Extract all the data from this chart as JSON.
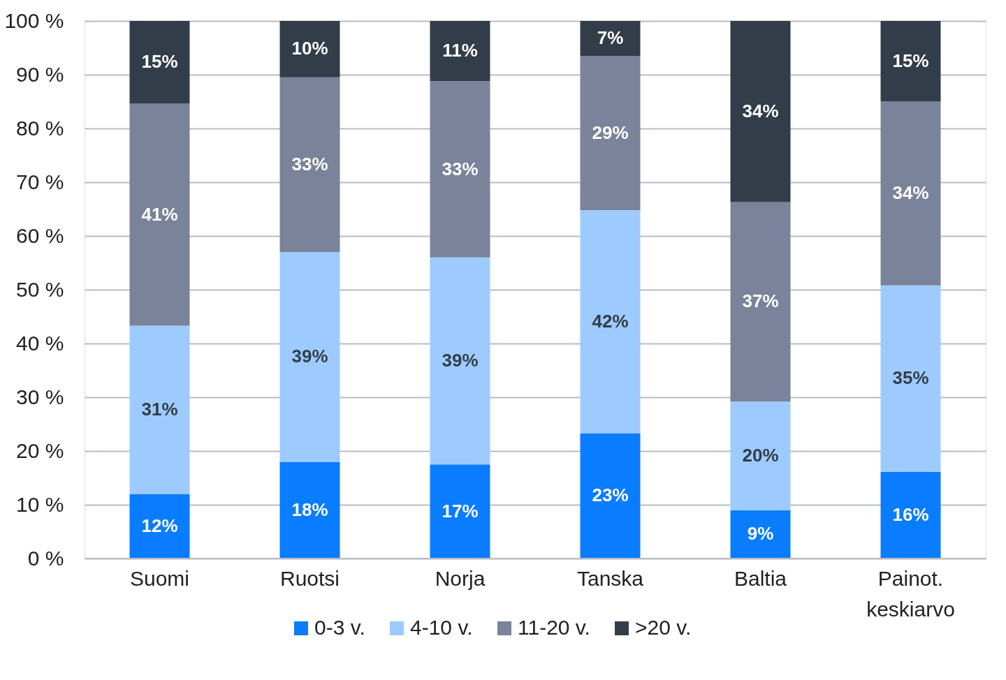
{
  "chart_data": {
    "type": "bar",
    "stacked": true,
    "categories": [
      "Suomi",
      "Ruotsi",
      "Norja",
      "Tanska",
      "Baltia",
      "Painot. keskiarvo"
    ],
    "series": [
      {
        "name": "0-3 v.",
        "color": "#0a7cff",
        "values": [
          12.0,
          18.0,
          17.5,
          23.3,
          9.0,
          16.1
        ],
        "value_labels": [
          "12%",
          "18%",
          "17%",
          "23%",
          "9%",
          "16%"
        ]
      },
      {
        "name": "4-10 v.",
        "color": "#9ecbff",
        "values": [
          31.3,
          39.0,
          38.5,
          41.5,
          20.2,
          34.7
        ],
        "value_labels": [
          "31%",
          "39%",
          "39%",
          "42%",
          "20%",
          "35%"
        ]
      },
      {
        "name": "11-20 v.",
        "color": "#7a8399",
        "values": [
          41.3,
          32.5,
          32.8,
          28.7,
          37.1,
          34.2
        ],
        "value_labels": [
          "41%",
          "33%",
          "33%",
          "29%",
          "37%",
          "34%"
        ]
      },
      {
        "name": ">20 v.",
        "color": "#333d4a",
        "values": [
          15.4,
          10.5,
          11.2,
          6.5,
          33.7,
          15.0
        ],
        "value_labels": [
          "15%",
          "10%",
          "11%",
          "7%",
          "34%",
          "15%"
        ]
      }
    ],
    "ylim": [
      0,
      100
    ],
    "yticks": [
      {
        "value": 0,
        "label": "0 %"
      },
      {
        "value": 10,
        "label": "10 %"
      },
      {
        "value": 20,
        "label": "20 %"
      },
      {
        "value": 30,
        "label": "30 %"
      },
      {
        "value": 40,
        "label": "40 %"
      },
      {
        "value": 50,
        "label": "50 %"
      },
      {
        "value": 60,
        "label": "60 %"
      },
      {
        "value": 70,
        "label": "70 %"
      },
      {
        "value": 80,
        "label": "80 %"
      },
      {
        "value": 90,
        "label": "90 %"
      },
      {
        "value": 100,
        "label": "100 %"
      }
    ],
    "grid": "y",
    "legend": "bottom"
  }
}
